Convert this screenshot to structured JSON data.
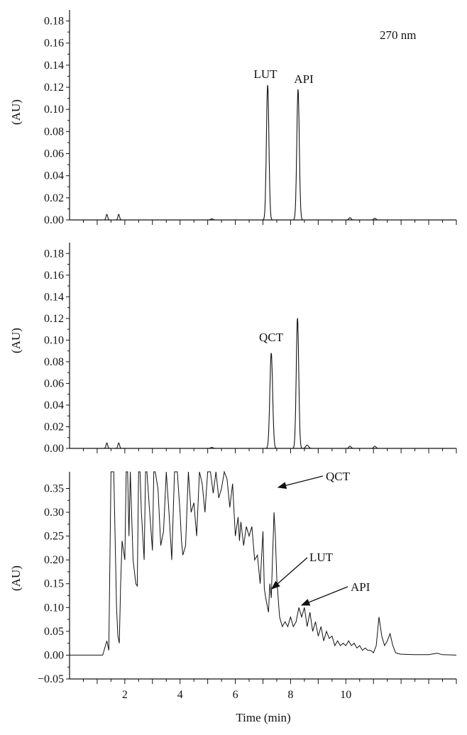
{
  "chart_data": [
    {
      "type": "line",
      "ylabel": "(AU)",
      "xlim": [
        0,
        14
      ],
      "ylim": [
        0,
        0.19
      ],
      "yticks": [
        0.0,
        0.02,
        0.04,
        0.06,
        0.08,
        0.1,
        0.12,
        0.14,
        0.16,
        0.18
      ],
      "ytick_labels": [
        "0.00",
        "0.02",
        "0.04",
        "0.06",
        "0.08",
        "0.10",
        "0.12",
        "0.14",
        "0.16",
        "0.18"
      ],
      "wavelength_label": "270 nm",
      "baseline": 0.0,
      "peaks": [
        {
          "x": 1.35,
          "y": 0.005,
          "w": 0.03
        },
        {
          "x": 1.78,
          "y": 0.005,
          "w": 0.03
        },
        {
          "x": 5.15,
          "y": 0.001,
          "w": 0.04
        },
        {
          "x": 7.17,
          "y": 0.122,
          "w": 0.045
        },
        {
          "x": 8.27,
          "y": 0.118,
          "w": 0.045
        },
        {
          "x": 10.15,
          "y": 0.002,
          "w": 0.04
        },
        {
          "x": 11.05,
          "y": 0.0015,
          "w": 0.04
        }
      ],
      "annotations": [
        {
          "text": "LUT",
          "x": 7.17,
          "y": 0.122
        },
        {
          "text": "API",
          "x": 8.27,
          "y": 0.118
        }
      ]
    },
    {
      "type": "line",
      "ylabel": "(AU)",
      "xlim": [
        0,
        14
      ],
      "ylim": [
        0,
        0.19
      ],
      "yticks": [
        0.0,
        0.02,
        0.04,
        0.06,
        0.08,
        0.1,
        0.12,
        0.14,
        0.16,
        0.18
      ],
      "ytick_labels": [
        "0.00",
        "0.02",
        "0.04",
        "0.06",
        "0.08",
        "0.10",
        "0.12",
        "0.14",
        "0.16",
        "0.18"
      ],
      "baseline": 0.0,
      "peaks": [
        {
          "x": 1.35,
          "y": 0.005,
          "w": 0.03
        },
        {
          "x": 1.78,
          "y": 0.005,
          "w": 0.03
        },
        {
          "x": 5.15,
          "y": 0.001,
          "w": 0.04
        },
        {
          "x": 7.3,
          "y": 0.088,
          "w": 0.05
        },
        {
          "x": 8.25,
          "y": 0.12,
          "w": 0.045
        },
        {
          "x": 8.6,
          "y": 0.003,
          "w": 0.05
        },
        {
          "x": 10.15,
          "y": 0.002,
          "w": 0.04
        },
        {
          "x": 11.05,
          "y": 0.002,
          "w": 0.04
        }
      ],
      "annotations": [
        {
          "text": "QCT",
          "x": 7.3,
          "y": 0.088
        }
      ]
    },
    {
      "type": "line",
      "xlabel": "Time (min)",
      "ylabel": "(AU)",
      "xlim": [
        0,
        14
      ],
      "ylim": [
        -0.05,
        0.385
      ],
      "xticks": [
        2,
        4,
        6,
        8,
        10
      ],
      "xtick_labels": [
        "2",
        "4",
        "6",
        "8",
        "10"
      ],
      "yticks": [
        -0.05,
        0.0,
        0.05,
        0.1,
        0.15,
        0.2,
        0.25,
        0.3,
        0.35
      ],
      "ytick_labels": [
        "−0.05",
        "0.00",
        "0.05",
        "0.10",
        "0.15",
        "0.20",
        "0.25",
        "0.30",
        "0.35"
      ],
      "series": [
        {
          "x": [
            0.0,
            1.2,
            1.3,
            1.35,
            1.42,
            1.5,
            1.55,
            1.6,
            1.7,
            1.75,
            1.8,
            1.85,
            1.9,
            2.0,
            2.05,
            2.1,
            2.15,
            2.2,
            2.3,
            2.4,
            2.45,
            2.5,
            2.55,
            2.6,
            2.7,
            2.75,
            2.8,
            2.9,
            3.0,
            3.05,
            3.1,
            3.2,
            3.3,
            3.4,
            3.5,
            3.6,
            3.7,
            3.8,
            3.9,
            4.0,
            4.05,
            4.1,
            4.2,
            4.3,
            4.4,
            4.5,
            4.6,
            4.7,
            4.8,
            4.9,
            5.0,
            5.1,
            5.2,
            5.3,
            5.4,
            5.5,
            5.6,
            5.7,
            5.8,
            5.9,
            6.0,
            6.1,
            6.15,
            6.2,
            6.3,
            6.4,
            6.5,
            6.6,
            6.7,
            6.8,
            6.9,
            7.0,
            7.05,
            7.1,
            7.2,
            7.25,
            7.3,
            7.4,
            7.45,
            7.5,
            7.6,
            7.7,
            7.8,
            7.9,
            8.0,
            8.1,
            8.2,
            8.3,
            8.4,
            8.5,
            8.6,
            8.7,
            8.8,
            8.9,
            9.0,
            9.1,
            9.2,
            9.3,
            9.4,
            9.5,
            9.6,
            9.7,
            9.8,
            9.9,
            10.0,
            10.1,
            10.2,
            10.3,
            10.4,
            10.5,
            10.6,
            10.7,
            10.8,
            10.9,
            11.0,
            11.1,
            11.2,
            11.3,
            11.4,
            11.5,
            11.6,
            11.7,
            11.8,
            11.9,
            12.0,
            12.5,
            13.0,
            13.3,
            13.5,
            14.0
          ],
          "y": [
            0.0,
            0.0,
            0.02,
            0.03,
            0.01,
            0.385,
            0.385,
            0.385,
            0.1,
            0.04,
            0.025,
            0.15,
            0.24,
            0.2,
            0.385,
            0.385,
            0.25,
            0.385,
            0.2,
            0.15,
            0.145,
            0.385,
            0.385,
            0.3,
            0.2,
            0.385,
            0.385,
            0.3,
            0.22,
            0.385,
            0.385,
            0.35,
            0.23,
            0.26,
            0.385,
            0.3,
            0.2,
            0.385,
            0.385,
            0.3,
            0.24,
            0.21,
            0.23,
            0.385,
            0.3,
            0.32,
            0.25,
            0.385,
            0.36,
            0.3,
            0.385,
            0.385,
            0.34,
            0.385,
            0.33,
            0.35,
            0.385,
            0.37,
            0.31,
            0.36,
            0.25,
            0.29,
            0.24,
            0.28,
            0.23,
            0.27,
            0.25,
            0.27,
            0.2,
            0.21,
            0.15,
            0.26,
            0.14,
            0.12,
            0.09,
            0.15,
            0.12,
            0.3,
            0.25,
            0.16,
            0.08,
            0.06,
            0.07,
            0.06,
            0.08,
            0.06,
            0.07,
            0.1,
            0.08,
            0.1,
            0.06,
            0.09,
            0.05,
            0.07,
            0.04,
            0.06,
            0.03,
            0.05,
            0.035,
            0.04,
            0.02,
            0.03,
            0.02,
            0.025,
            0.02,
            0.03,
            0.02,
            0.025,
            0.015,
            0.02,
            0.01,
            0.015,
            0.01,
            0.01,
            0.005,
            0.02,
            0.08,
            0.04,
            0.02,
            0.03,
            0.045,
            0.02,
            0.005,
            0.003,
            0.002,
            0.001,
            0.001,
            0.004,
            0.001,
            0.0
          ]
        }
      ],
      "annotations": [
        {
          "text": "QCT",
          "x": 7.45,
          "y": 0.3
        },
        {
          "text": "LUT",
          "x": 7.2,
          "y": 0.13
        },
        {
          "text": "API",
          "x": 8.3,
          "y": 0.1
        }
      ]
    }
  ]
}
